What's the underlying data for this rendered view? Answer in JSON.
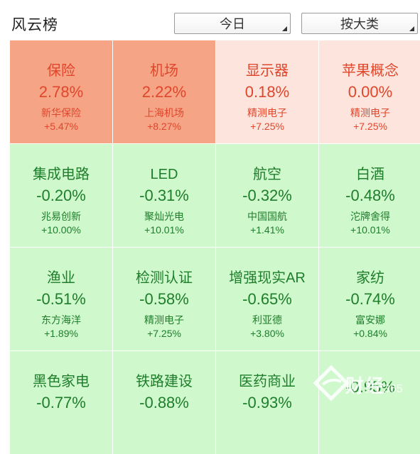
{
  "header": {
    "title": "风云榜",
    "period_select": "今日",
    "category_select": "按大类"
  },
  "tiles": [
    {
      "name": "保险",
      "pct": "2.78%",
      "stock": "新华保险",
      "stock_pct": "+5.47%"
    },
    {
      "name": "机场",
      "pct": "2.22%",
      "stock": "上海机场",
      "stock_pct": "+8.27%"
    },
    {
      "name": "显示器",
      "pct": "0.18%",
      "stock": "精测电子",
      "stock_pct": "+7.25%"
    },
    {
      "name": "苹果概念",
      "pct": "0.00%",
      "stock": "精测电子",
      "stock_pct": "+7.25%"
    },
    {
      "name": "集成电路",
      "pct": "-0.20%",
      "stock": "兆易创新",
      "stock_pct": "+10.00%"
    },
    {
      "name": "LED",
      "pct": "-0.31%",
      "stock": "聚灿光电",
      "stock_pct": "+10.01%"
    },
    {
      "name": "航空",
      "pct": "-0.32%",
      "stock": "中国国航",
      "stock_pct": "+1.41%"
    },
    {
      "name": "白酒",
      "pct": "-0.48%",
      "stock": "沱牌舍得",
      "stock_pct": "+10.01%"
    },
    {
      "name": "渔业",
      "pct": "-0.51%",
      "stock": "东方海洋",
      "stock_pct": "+1.89%"
    },
    {
      "name": "检测认证",
      "pct": "-0.58%",
      "stock": "精测电子",
      "stock_pct": "+7.25%"
    },
    {
      "name": "增强现实AR",
      "pct": "-0.65%",
      "stock": "利亚德",
      "stock_pct": "+3.80%"
    },
    {
      "name": "家纺",
      "pct": "-0.74%",
      "stock": "富安娜",
      "stock_pct": "+0.84%"
    },
    {
      "name": "黑色家电",
      "pct": "-0.77%",
      "stock": "",
      "stock_pct": ""
    },
    {
      "name": "铁路建设",
      "pct": "-0.88%",
      "stock": "",
      "stock_pct": ""
    },
    {
      "name": "医药商业",
      "pct": "-0.93%",
      "stock": "",
      "stock_pct": ""
    },
    {
      "name": "",
      "pct": "-0.95%",
      "stock": "",
      "stock_pct": ""
    }
  ],
  "colors": {
    "up_strong": "#f6a486",
    "up_light": "#fde4dd",
    "down": "#cff8cd",
    "up_text": "#e0462b",
    "down_text": "#1e7e2a"
  },
  "watermark": {
    "text": "财经",
    "number": "365"
  }
}
